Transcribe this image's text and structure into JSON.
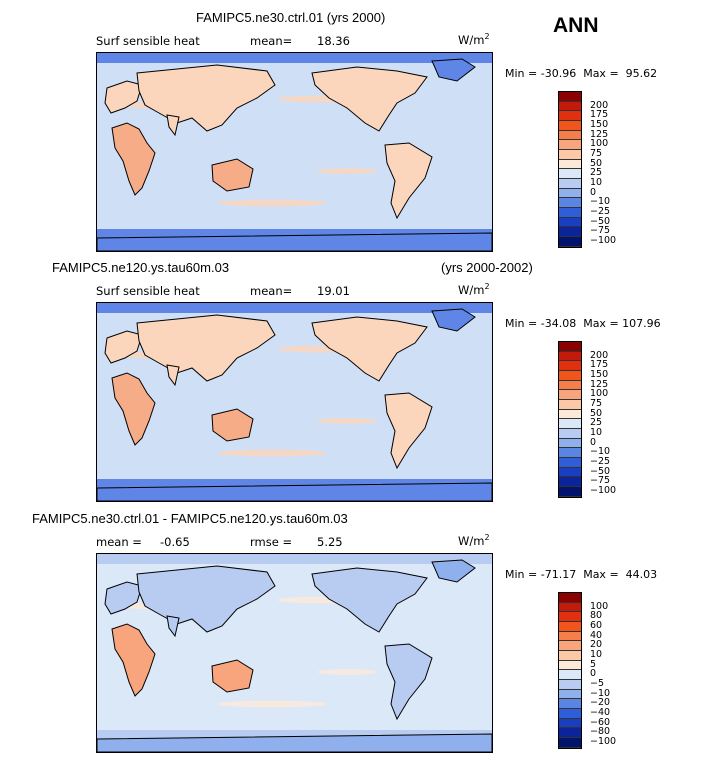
{
  "season": "ANN",
  "units_main": "W/m",
  "units_sup": "2",
  "panels": [
    {
      "case_label": "FAMIPC5.ne30.ctrl.01 (yrs 2000)",
      "years_label": "",
      "var_label": "Surf sensible heat",
      "stat1_label": "mean=",
      "stat1_value": "18.36",
      "stat2_label": "",
      "stat2_value": "",
      "min_label": "Min =",
      "min_value": "-30.96",
      "max_label": "Max =",
      "max_value": "95.62",
      "levels": [
        "200",
        "175",
        "150",
        "125",
        "100",
        "75",
        "50",
        "25",
        "10",
        "0",
        "−10",
        "−25",
        "−50",
        "−75",
        "−100"
      ]
    },
    {
      "case_label": "FAMIPC5.ne120.ys.tau60m.03",
      "years_label": "(yrs 2000-2002)",
      "var_label": "Surf sensible heat",
      "stat1_label": "mean=",
      "stat1_value": "19.01",
      "stat2_label": "",
      "stat2_value": "",
      "min_label": "Min =",
      "min_value": "-34.08",
      "max_label": "Max =",
      "max_value": "107.96",
      "levels": [
        "200",
        "175",
        "150",
        "125",
        "100",
        "75",
        "50",
        "25",
        "10",
        "0",
        "−10",
        "−25",
        "−50",
        "−75",
        "−100"
      ]
    },
    {
      "case_label": "FAMIPC5.ne30.ctrl.01 - FAMIPC5.ne120.ys.tau60m.03",
      "years_label": "",
      "var_label": "mean =",
      "stat1_label": "",
      "stat1_value": "-0.65",
      "stat2_label": "rmse =",
      "stat2_value": "5.25",
      "min_label": "Min =",
      "min_value": "-71.17",
      "max_label": "Max =",
      "max_value": "44.03",
      "levels": [
        "100",
        "80",
        "60",
        "40",
        "20",
        "10",
        "5",
        "0",
        "−5",
        "−10",
        "−20",
        "−40",
        "−60",
        "−80",
        "−100"
      ]
    }
  ],
  "colorbar_colors": [
    "#8b0000",
    "#c41a0c",
    "#e03010",
    "#f0561c",
    "#f57e4a",
    "#f8a57e",
    "#fbc8a8",
    "#fde9d8",
    "#dbe8f8",
    "#b8ccf2",
    "#8fb0ec",
    "#5b85e3",
    "#2f5ed8",
    "#1a3ec0",
    "#0c249a",
    "#00146e"
  ],
  "map_colors": {
    "ocean": "#cfdff6",
    "land_warm": "#fbd5bc",
    "land_hot": "#f6ad87",
    "cold": "#5f86e6",
    "coast": "#000000"
  }
}
